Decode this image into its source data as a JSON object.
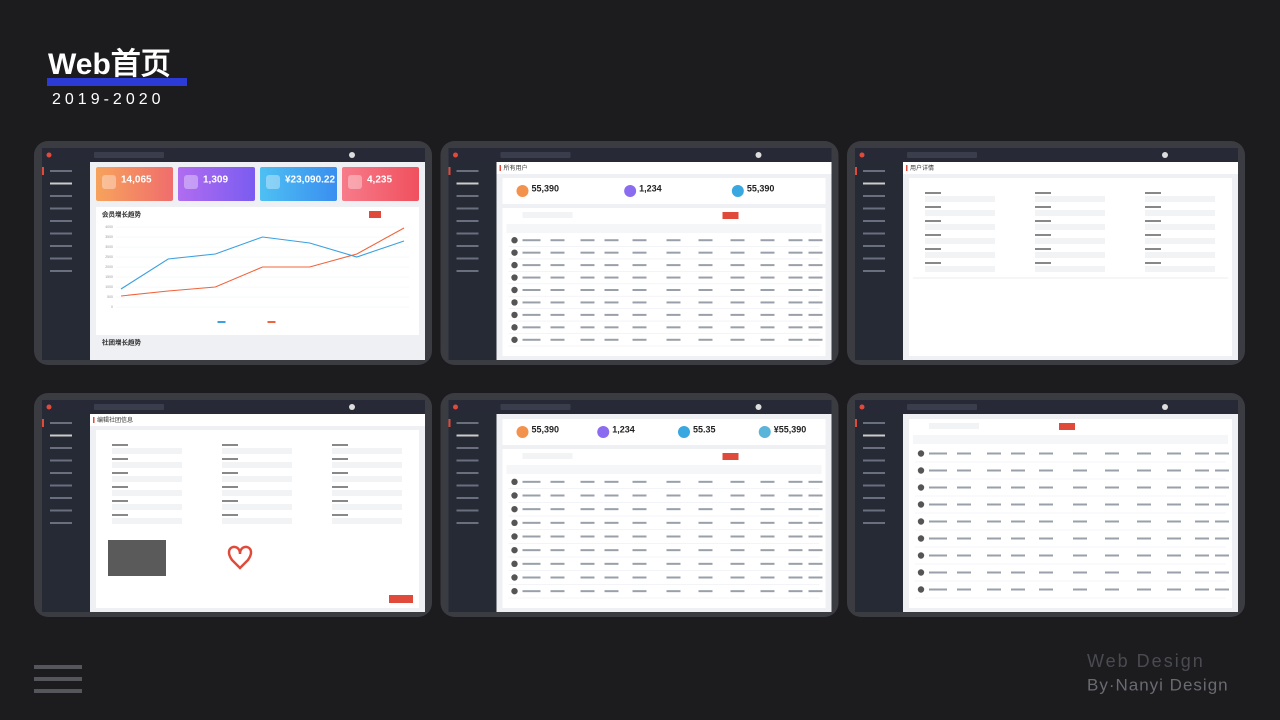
{
  "header": {
    "title": "Web首页",
    "subtitle": "2019-2020"
  },
  "footer": {
    "line1": "Web Design",
    "line2": "By·Nanyi Design"
  },
  "screens": [
    {
      "kind": "dashboard",
      "stats": [
        "14,065",
        "1,309",
        "¥23,090.22",
        "4,235"
      ],
      "panel_title": "会员增长趋势",
      "second_title": "社团增长趋势",
      "chart": {
        "type": "line",
        "ylim": [
          0,
          4000
        ],
        "yticks": [
          0,
          500,
          1000,
          1500,
          2000,
          2500,
          3000,
          3500,
          4000
        ],
        "series": [
          {
            "color": "#3aa0e0",
            "values": [
              900,
              2400,
              2650,
              3500,
              3200,
              2500,
              3300
            ]
          },
          {
            "color": "#f0643c",
            "values": [
              550,
              800,
              1000,
              2000,
              2000,
              2650,
              3950
            ]
          }
        ]
      }
    },
    {
      "kind": "list",
      "page_title": "所有用户",
      "stats": [
        "55,390",
        "1,234",
        "55,390"
      ]
    },
    {
      "kind": "detail",
      "page_title": "用户详情"
    },
    {
      "kind": "form",
      "page_title": "编辑社团信息"
    },
    {
      "kind": "list",
      "stats": [
        "55,390",
        "1,234",
        "55.35",
        "¥55,390"
      ]
    },
    {
      "kind": "table"
    }
  ]
}
